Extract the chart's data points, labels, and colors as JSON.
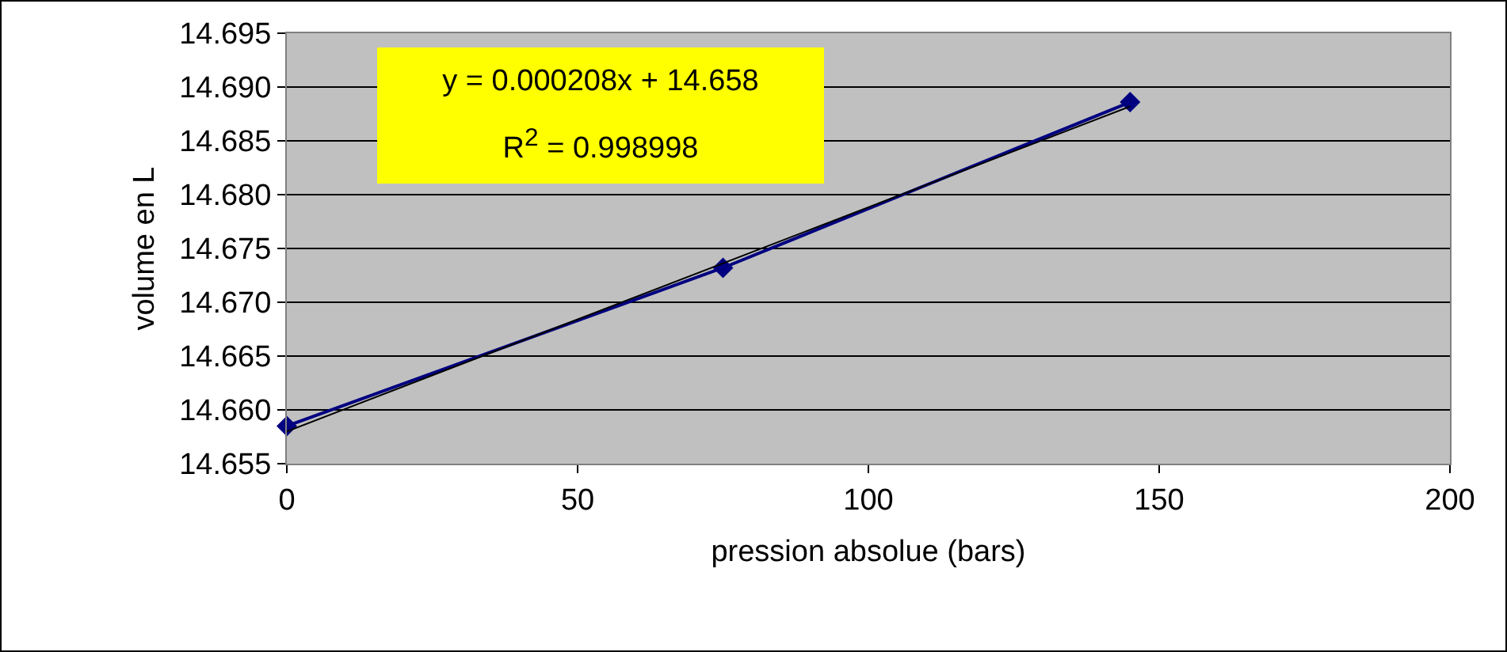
{
  "chart_data": {
    "type": "line",
    "xlabel": "pression absolue (bars)",
    "ylabel": "volume en L",
    "annotations": [
      "y = 0.000208x + 14.658",
      "R$^{2}$ = 0.998998"
    ],
    "series": [
      {
        "color": "#000080",
        "x": [
          0,
          75,
          145
        ],
        "values": [
          14.6585,
          14.6732,
          14.6886
        ]
      },
      {
        "type": "line",
        "marker": "none",
        "color": "#000000",
        "x": [
          0,
          145
        ],
        "values": [
          14.658,
          14.6882
        ]
      }
    ],
    "xlim": [
      0,
      200
    ],
    "xticks": [
      0,
      50,
      100,
      150,
      200
    ],
    "ylim": [
      14.655,
      14.695
    ],
    "yticks": [
      14.655,
      {
        "value": 14.66,
        "label": "14.660"
      },
      14.665,
      {
        "value": 14.67,
        "label": "14.670"
      },
      14.675,
      {
        "value": 14.68,
        "label": "14.680"
      },
      14.685,
      {
        "value": 14.69,
        "label": "14.690"
      },
      14.695
    ],
    "grid": "y",
    "legend": false,
    "marker": "diamond",
    "line_style": "solid"
  }
}
